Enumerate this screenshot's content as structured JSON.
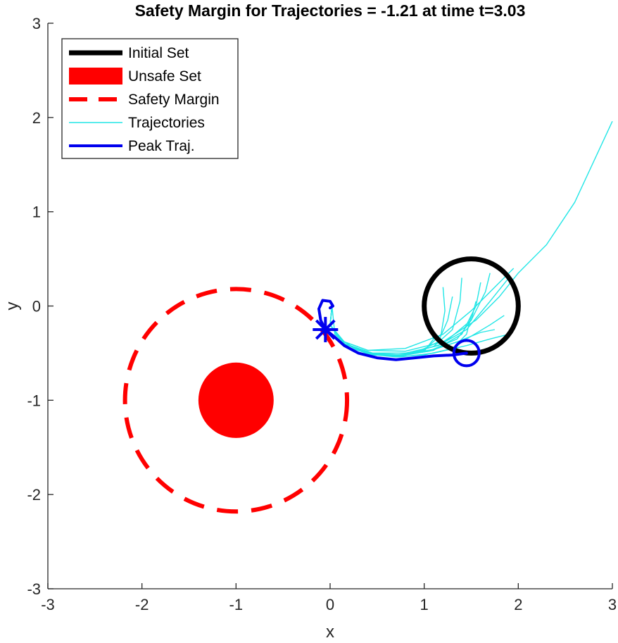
{
  "chart_data": {
    "type": "line",
    "title": "Safety Margin for Trajectories = -1.21 at time t=3.03",
    "xlabel": "x",
    "ylabel": "y",
    "xlim": [
      -3,
      3
    ],
    "ylim": [
      -3,
      3
    ],
    "xticks": [
      -3,
      -2,
      -1,
      0,
      1,
      2,
      3
    ],
    "yticks": [
      -3,
      -2,
      -1,
      0,
      1,
      2,
      3
    ],
    "tick_labels_x": [
      "-3",
      "-2",
      "-1",
      "0",
      "1",
      "2",
      "3"
    ],
    "tick_labels_y": [
      "-3",
      "-2",
      "-1",
      "0",
      "1",
      "2",
      "3"
    ],
    "grid": false,
    "legend_position": "top-left",
    "colors": {
      "initial_set": "#000000",
      "unsafe_set": "#ff0000",
      "safety_margin": "#ff0000",
      "trajectories": "#22e6e6",
      "peak": "#0000ee"
    },
    "legend": [
      {
        "label": "Initial Set",
        "style": "initial"
      },
      {
        "label": "Unsafe Set",
        "style": "unsafe"
      },
      {
        "label": "Safety Margin",
        "style": "margin"
      },
      {
        "label": "Trajectories",
        "style": "traj"
      },
      {
        "label": "Peak Traj.",
        "style": "peak"
      }
    ],
    "initial_set": {
      "center": [
        1.5,
        0
      ],
      "radius": 0.5
    },
    "unsafe_set": {
      "center": [
        -1,
        -1
      ],
      "radius": 0.4
    },
    "safety_margin": {
      "center": [
        -1,
        -1
      ],
      "radius": 1.18
    },
    "peak_start": [
      1.45,
      -0.5
    ],
    "peak_end": [
      -0.05,
      -0.25
    ],
    "peak_trajectory": [
      [
        1.45,
        -0.5
      ],
      [
        1.3,
        -0.52
      ],
      [
        1.1,
        -0.53
      ],
      [
        0.9,
        -0.55
      ],
      [
        0.7,
        -0.57
      ],
      [
        0.5,
        -0.55
      ],
      [
        0.3,
        -0.5
      ],
      [
        0.15,
        -0.42
      ],
      [
        0.05,
        -0.33
      ],
      [
        -0.05,
        -0.25
      ],
      [
        -0.1,
        -0.15
      ],
      [
        -0.12,
        -0.03
      ],
      [
        -0.08,
        0.06
      ],
      [
        0.0,
        0.05
      ],
      [
        0.03,
        0.0
      ],
      [
        0.0,
        -0.02
      ]
    ],
    "trajectories": [
      [
        [
          3.0,
          1.96
        ],
        [
          2.6,
          1.1
        ],
        [
          2.3,
          0.65
        ],
        [
          2.0,
          0.35
        ],
        [
          1.8,
          0.1
        ],
        [
          1.55,
          -0.15
        ],
        [
          1.2,
          -0.38
        ],
        [
          0.8,
          -0.48
        ],
        [
          0.4,
          -0.47
        ],
        [
          0.15,
          -0.38
        ],
        [
          0.0,
          -0.2
        ],
        [
          0.02,
          0.0
        ]
      ],
      [
        [
          1.95,
          0.4
        ],
        [
          1.75,
          0.2
        ],
        [
          1.5,
          -0.05
        ],
        [
          1.2,
          -0.3
        ],
        [
          0.8,
          -0.45
        ],
        [
          0.4,
          -0.47
        ],
        [
          0.15,
          -0.38
        ],
        [
          0.0,
          -0.2
        ],
        [
          0.02,
          0.0
        ]
      ],
      [
        [
          1.9,
          0.3
        ],
        [
          1.7,
          0.05
        ],
        [
          1.45,
          -0.25
        ],
        [
          1.15,
          -0.42
        ],
        [
          0.8,
          -0.5
        ],
        [
          0.45,
          -0.5
        ],
        [
          0.15,
          -0.4
        ],
        [
          0.0,
          -0.2
        ],
        [
          0.02,
          0.0
        ]
      ],
      [
        [
          1.4,
          0.3
        ],
        [
          1.38,
          0.05
        ],
        [
          1.3,
          -0.25
        ],
        [
          1.1,
          -0.43
        ],
        [
          0.8,
          -0.52
        ],
        [
          0.45,
          -0.51
        ],
        [
          0.15,
          -0.4
        ],
        [
          0.0,
          -0.2
        ],
        [
          0.02,
          0.0
        ]
      ],
      [
        [
          1.2,
          0.2
        ],
        [
          1.22,
          -0.05
        ],
        [
          1.18,
          -0.3
        ],
        [
          1.0,
          -0.47
        ],
        [
          0.7,
          -0.53
        ],
        [
          0.4,
          -0.5
        ],
        [
          0.15,
          -0.4
        ],
        [
          0.0,
          -0.2
        ],
        [
          0.02,
          0.0
        ]
      ],
      [
        [
          1.6,
          0.25
        ],
        [
          1.55,
          0.0
        ],
        [
          1.4,
          -0.3
        ],
        [
          1.1,
          -0.47
        ],
        [
          0.75,
          -0.53
        ],
        [
          0.4,
          -0.5
        ],
        [
          0.15,
          -0.4
        ],
        [
          0.0,
          -0.2
        ],
        [
          0.02,
          0.0
        ]
      ],
      [
        [
          1.85,
          -0.1
        ],
        [
          1.7,
          -0.2
        ],
        [
          1.45,
          -0.35
        ],
        [
          1.1,
          -0.46
        ],
        [
          0.75,
          -0.52
        ],
        [
          0.4,
          -0.5
        ],
        [
          0.15,
          -0.4
        ],
        [
          0.0,
          -0.2
        ],
        [
          0.02,
          0.0
        ]
      ],
      [
        [
          1.9,
          -0.3
        ],
        [
          1.7,
          -0.35
        ],
        [
          1.45,
          -0.42
        ],
        [
          1.1,
          -0.5
        ],
        [
          0.75,
          -0.54
        ],
        [
          0.4,
          -0.51
        ],
        [
          0.15,
          -0.4
        ],
        [
          0.0,
          -0.2
        ],
        [
          0.02,
          0.0
        ]
      ],
      [
        [
          1.5,
          -0.1
        ],
        [
          1.45,
          -0.3
        ],
        [
          1.3,
          -0.45
        ],
        [
          1.0,
          -0.52
        ],
        [
          0.7,
          -0.54
        ],
        [
          0.4,
          -0.51
        ],
        [
          0.15,
          -0.4
        ],
        [
          0.0,
          -0.2
        ],
        [
          0.02,
          0.0
        ]
      ],
      [
        [
          1.05,
          -0.2
        ],
        [
          1.1,
          -0.35
        ],
        [
          1.0,
          -0.48
        ],
        [
          0.75,
          -0.53
        ],
        [
          0.45,
          -0.52
        ],
        [
          0.2,
          -0.44
        ],
        [
          0.05,
          -0.3
        ],
        [
          0.02,
          0.0
        ]
      ],
      [
        [
          1.3,
          0.1
        ],
        [
          1.25,
          -0.15
        ],
        [
          1.15,
          -0.38
        ],
        [
          0.9,
          -0.5
        ],
        [
          0.6,
          -0.53
        ],
        [
          0.3,
          -0.47
        ],
        [
          0.1,
          -0.35
        ],
        [
          0.0,
          -0.2
        ],
        [
          0.02,
          0.0
        ]
      ],
      [
        [
          1.7,
          0.35
        ],
        [
          1.65,
          0.15
        ],
        [
          1.5,
          -0.15
        ],
        [
          1.2,
          -0.4
        ],
        [
          0.85,
          -0.5
        ],
        [
          0.45,
          -0.5
        ],
        [
          0.15,
          -0.4
        ],
        [
          0.0,
          -0.2
        ],
        [
          0.02,
          0.0
        ]
      ],
      [
        [
          1.75,
          -0.25
        ],
        [
          1.6,
          -0.28
        ],
        [
          1.35,
          -0.38
        ],
        [
          1.05,
          -0.48
        ],
        [
          0.7,
          -0.53
        ],
        [
          0.4,
          -0.5
        ],
        [
          0.15,
          -0.4
        ],
        [
          0.0,
          -0.2
        ],
        [
          0.02,
          0.0
        ]
      ],
      [
        [
          1.55,
          0.05
        ],
        [
          1.5,
          -0.15
        ],
        [
          1.35,
          -0.35
        ],
        [
          1.05,
          -0.48
        ],
        [
          0.7,
          -0.53
        ],
        [
          0.4,
          -0.5
        ],
        [
          0.15,
          -0.4
        ],
        [
          0.0,
          -0.2
        ],
        [
          0.02,
          0.0
        ]
      ]
    ]
  }
}
